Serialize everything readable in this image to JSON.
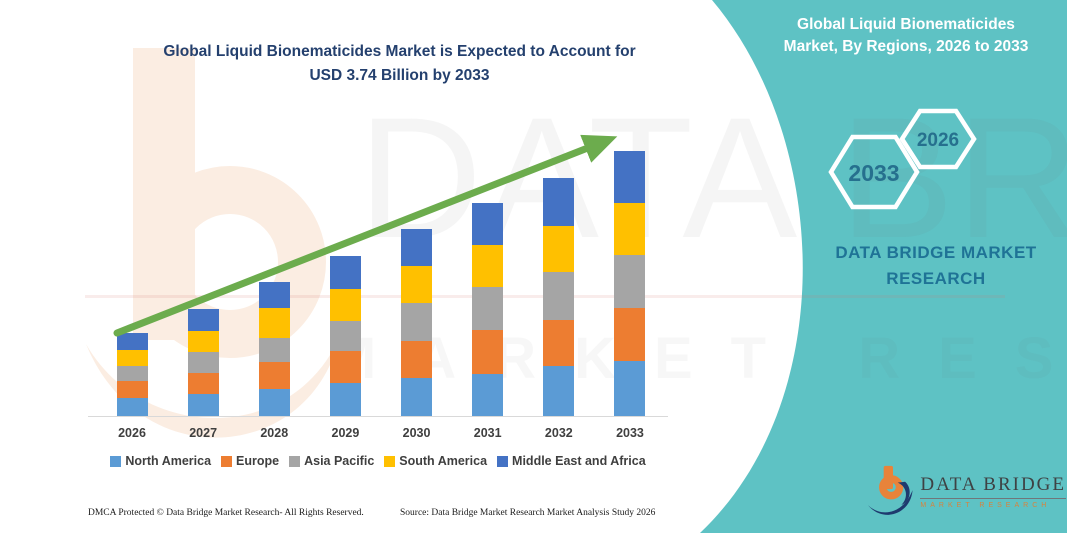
{
  "title": {
    "line1": "Global Liquid Bionematicides Market is Expected to Account for",
    "line2": "USD 3.74 Billion by 2033"
  },
  "side_panel": {
    "heading_line1": "Global Liquid Bionematicides",
    "heading_line2": "Market, By Regions, 2026 to 2033",
    "hex_large": "2033",
    "hex_small": "2026",
    "brand_line1": "DATA BRIDGE MARKET",
    "brand_line2": "RESEARCH"
  },
  "watermark": {
    "big": "DATA BRIDGE",
    "sub": "MARKET RESEARCH"
  },
  "logo": {
    "name": "DATA BRIDGE",
    "tagline": "MARKET RESEARCH"
  },
  "footer": {
    "dmca": "DMCA Protected © Data Bridge Market Research-  All Rights Reserved.",
    "source": "Source: Data Bridge Market Research  Market Analysis Study 2026"
  },
  "colors": {
    "teal_panel": "#5EC2C4",
    "title_navy": "#24406E",
    "arrow_green": "#6CAC4D",
    "panel_text_blue": "#1F7396",
    "hex_label_blue": "#26708E",
    "axis_label_gray": "#3F3F3F",
    "axis_line_gray": "#D9D9D9",
    "logo_orange": "#D9823B",
    "logo_navy": "#1E3A6E",
    "watermark_peach": "#FBEDE2"
  },
  "chart_data": {
    "type": "bar",
    "stacked": true,
    "title": "Global Liquid Bionematicides Market, By Regions, 2026 to 2033",
    "unit": "USD Billion",
    "highlight_value": "USD 3.74 Billion by 2033",
    "categories": [
      "2026",
      "2027",
      "2028",
      "2029",
      "2030",
      "2031",
      "2032",
      "2033"
    ],
    "series": [
      {
        "name": "North America",
        "color": "#5B9BD5",
        "values": [
          0.26,
          0.31,
          0.38,
          0.46,
          0.54,
          0.6,
          0.7,
          0.78
        ]
      },
      {
        "name": "Europe",
        "color": "#ED7D31",
        "values": [
          0.24,
          0.3,
          0.39,
          0.46,
          0.52,
          0.61,
          0.66,
          0.74
        ]
      },
      {
        "name": "Asia Pacific",
        "color": "#A5A5A5",
        "values": [
          0.21,
          0.3,
          0.33,
          0.42,
          0.54,
          0.61,
          0.68,
          0.75
        ]
      },
      {
        "name": "South America",
        "color": "#FFC000",
        "values": [
          0.22,
          0.3,
          0.42,
          0.45,
          0.52,
          0.59,
          0.65,
          0.74
        ]
      },
      {
        "name": "Middle East and Africa",
        "color": "#4472C4",
        "values": [
          0.24,
          0.31,
          0.37,
          0.47,
          0.52,
          0.6,
          0.67,
          0.73
        ]
      }
    ],
    "totals": [
      1.17,
      1.52,
      1.89,
      2.26,
      2.64,
      3.01,
      3.36,
      3.74
    ],
    "xlabel": "",
    "ylabel": "",
    "y_axis_shown": false,
    "gridlines": false,
    "legend_position": "bottom",
    "trend_arrow": true
  }
}
